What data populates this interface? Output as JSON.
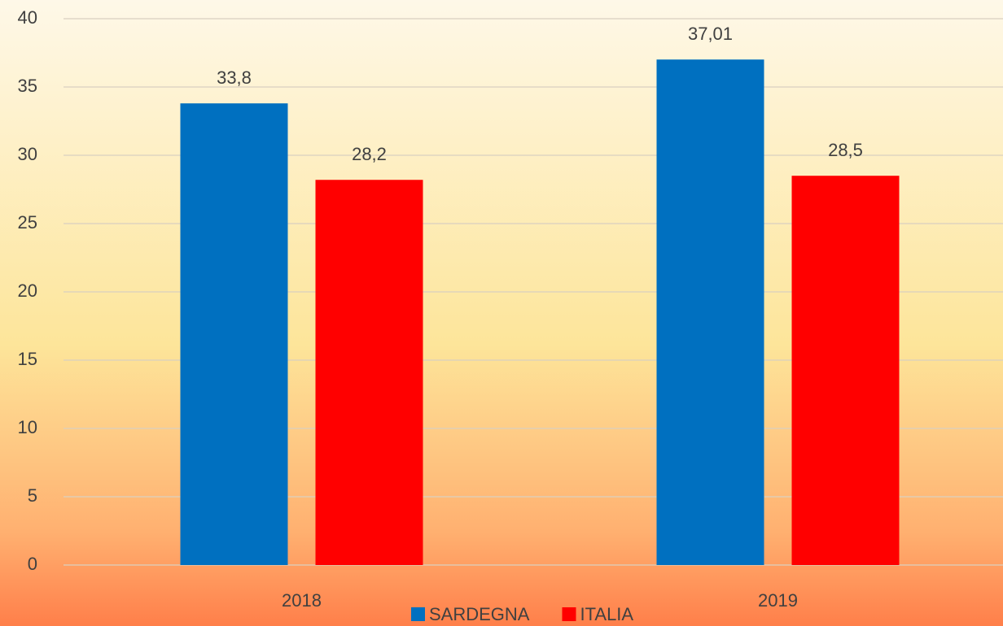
{
  "chart_data": {
    "type": "bar",
    "categories": [
      "2018",
      "2019"
    ],
    "series": [
      {
        "name": "SARDEGNA",
        "color": "#0070c0",
        "values": [
          33.8,
          37.01
        ],
        "value_labels": [
          "33,8",
          "37,01"
        ]
      },
      {
        "name": "ITALIA",
        "color": "#ff0000",
        "values": [
          28.2,
          28.5
        ],
        "value_labels": [
          "28,2",
          "28,5"
        ]
      }
    ],
    "ylim": [
      0,
      40
    ],
    "yticks": [
      0,
      5,
      10,
      15,
      20,
      25,
      30,
      35,
      40
    ],
    "grid": true,
    "legend": "bottom"
  }
}
